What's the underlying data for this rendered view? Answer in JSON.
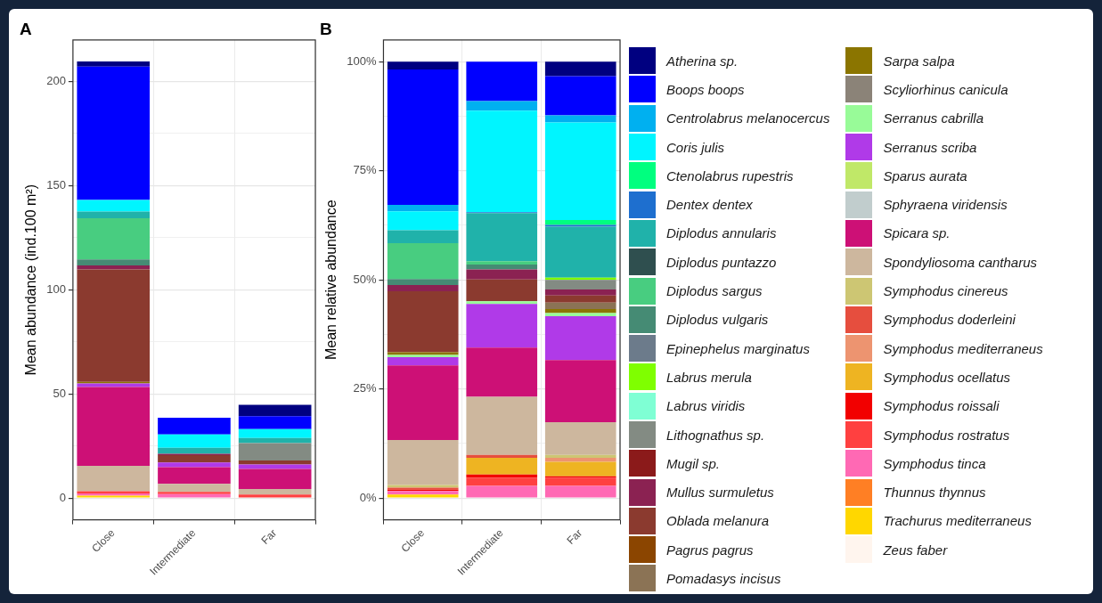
{
  "chart_data": [
    {
      "type": "bar",
      "title": "A",
      "ylabel": "Mean abundance (ind.100 m²)",
      "categories": [
        "Close",
        "Intermediate",
        "Far"
      ],
      "stacked": true,
      "grid": true,
      "legend": false,
      "ylim": [
        -10.5,
        220
      ],
      "yticks": [
        0,
        {
          "value": 25,
          "label": null
        },
        50,
        {
          "value": 75,
          "label": null
        },
        100,
        {
          "value": 125,
          "label": null
        },
        150,
        {
          "value": 175,
          "label": null
        },
        200
      ],
      "series": [
        {
          "color": "#fff5ee",
          "values": [
            null,
            null,
            null
          ]
        },
        {
          "color": "#ffd700",
          "values": [
            1.1,
            null,
            null
          ]
        },
        {
          "color": "#ff7f24",
          "values": [
            null,
            null,
            null
          ]
        },
        {
          "color": "#ff69b4",
          "values": [
            1.1,
            1.9,
            null
          ]
        },
        {
          "color": "#ff4040",
          "values": [
            1.1,
            1.0,
            1.7
          ]
        },
        {
          "color": "#f20000",
          "values": [
            null,
            null,
            null
          ]
        },
        {
          "color": "#eeb422",
          "values": [
            null,
            null,
            null
          ]
        },
        {
          "color": "#ed9470",
          "values": [
            null,
            null,
            null
          ]
        },
        {
          "color": "#e64e3e",
          "values": [
            null,
            null,
            null
          ]
        },
        {
          "color": "#cdc673",
          "values": [
            null,
            null,
            null
          ]
        },
        {
          "color": "#cdb79e",
          "values": [
            12.1,
            3.9,
            2.6
          ]
        },
        {
          "color": "#cd1076",
          "values": [
            37.9,
            8.0,
            9.7
          ]
        },
        {
          "color": "#c1cdcd",
          "values": [
            null,
            null,
            null
          ]
        },
        {
          "color": "#c0e868",
          "values": [
            null,
            null,
            null
          ]
        },
        {
          "color": "#b03ae8",
          "values": [
            1.7,
            2.2,
            2.1
          ]
        },
        {
          "color": "#98fb98",
          "values": [
            null,
            null,
            null
          ]
        },
        {
          "color": "#8b8378",
          "values": [
            null,
            null,
            null
          ]
        },
        {
          "color": "#8b7500",
          "values": [
            0.8,
            null,
            null
          ]
        },
        {
          "color": "#8b7355",
          "values": [
            null,
            null,
            null
          ]
        },
        {
          "color": "#8b4500",
          "values": [
            null,
            null,
            null
          ]
        },
        {
          "color": "#8b3a2f",
          "values": [
            54.0,
            3.6,
            1.9
          ]
        },
        {
          "color": "#8b2252",
          "values": [
            1.9,
            0.6,
            null
          ]
        },
        {
          "color": "#8b1a1a",
          "values": [
            null,
            null,
            null
          ]
        },
        {
          "color": "#838b83",
          "values": [
            null,
            null,
            8.4
          ]
        },
        {
          "color": "#7fffd4",
          "values": [
            null,
            null,
            null
          ]
        },
        {
          "color": "#7fff00",
          "values": [
            null,
            null,
            null
          ]
        },
        {
          "color": "#6c7b8b",
          "values": [
            null,
            null,
            null
          ]
        },
        {
          "color": "#458b74",
          "values": [
            2.9,
            null,
            null
          ]
        },
        {
          "color": "#48cd80",
          "values": [
            19.8,
            null,
            null
          ]
        },
        {
          "color": "#2f4f4f",
          "values": [
            null,
            null,
            null
          ]
        },
        {
          "color": "#20b2aa",
          "values": [
            3.2,
            2.9,
            2.4
          ]
        },
        {
          "color": "#1e6fcf",
          "values": [
            null,
            null,
            null
          ]
        },
        {
          "color": "#00ff7f",
          "values": [
            null,
            null,
            null
          ]
        },
        {
          "color": "#00f5ff",
          "values": [
            5.5,
            6.4,
            4.3
          ]
        },
        {
          "color": "#00b0f0",
          "values": [
            null,
            null,
            null
          ]
        },
        {
          "color": "#0000ff",
          "values": [
            64.1,
            8.0,
            6.2
          ]
        },
        {
          "color": "#000080",
          "values": [
            2.5,
            null,
            5.4
          ]
        }
      ]
    },
    {
      "type": "bar",
      "title": "B",
      "ylabel": "Mean relative abundance",
      "categories": [
        "Close",
        "Intermediate",
        "Far"
      ],
      "stacked": true,
      "grid": true,
      "legend": "right",
      "ylim": [
        -5,
        105
      ],
      "yticks": [
        {
          "value": 0,
          "label": "0%"
        },
        {
          "value": 12.5,
          "label": null
        },
        {
          "value": 25,
          "label": "25%"
        },
        {
          "value": 37.5,
          "label": null
        },
        {
          "value": 50,
          "label": "50%"
        },
        {
          "value": 62.5,
          "label": null
        },
        {
          "value": 75,
          "label": "75%"
        },
        {
          "value": 87.5,
          "label": null
        },
        {
          "value": 100,
          "label": "100%"
        }
      ],
      "series": [
        {
          "name": "Zeus faber",
          "color": "#fff5ee",
          "values": [
            null,
            null,
            null
          ]
        },
        {
          "name": "Trachurus mediterraneus",
          "color": "#ffd700",
          "values": [
            0.8,
            null,
            null
          ]
        },
        {
          "name": "Thunnus thynnus",
          "color": "#ff7f24",
          "values": [
            null,
            null,
            null
          ]
        },
        {
          "name": "Symphodus tinca",
          "color": "#ff69b4",
          "values": [
            0.8,
            2.8,
            2.8
          ]
        },
        {
          "name": "Symphodus rostratus",
          "color": "#ff4040",
          "values": [
            null,
            1.9,
            1.9
          ]
        },
        {
          "name": "Symphodus roissali",
          "color": "#f20000",
          "values": [
            0.3,
            0.7,
            0.3
          ]
        },
        {
          "name": "Symphodus ocellatus",
          "color": "#eeb422",
          "values": [
            null,
            3.8,
            3.3
          ]
        },
        {
          "name": "Symphodus mediterraneus",
          "color": "#ed9470",
          "values": [
            null,
            null,
            0.9
          ]
        },
        {
          "name": "Symphodus doderleini",
          "color": "#e64e3e",
          "values": [
            0.5,
            0.7,
            null
          ]
        },
        {
          "name": "Symphodus cinereus",
          "color": "#cdc673",
          "values": [
            0.6,
            null,
            0.7
          ]
        },
        {
          "name": "Spondyliosoma cantharus",
          "color": "#cdb79e",
          "values": [
            10.3,
            13.3,
            7.5
          ]
        },
        {
          "name": "Spicara sp.",
          "color": "#cd1076",
          "values": [
            17.1,
            11.3,
            14.2
          ]
        },
        {
          "name": "Sphyraena viridensis",
          "color": "#c1cdcd",
          "values": [
            null,
            null,
            null
          ]
        },
        {
          "name": "Sparus aurata",
          "color": "#c0e868",
          "values": [
            null,
            null,
            null
          ]
        },
        {
          "name": "Serranus scriba",
          "color": "#b03ae8",
          "values": [
            1.9,
            10.0,
            10.1
          ]
        },
        {
          "name": "Serranus cabrilla",
          "color": "#98fb98",
          "values": [
            0.5,
            0.6,
            0.7
          ]
        },
        {
          "name": "Scyliorhinus canicula",
          "color": "#8b8378",
          "values": [
            null,
            null,
            null
          ]
        },
        {
          "name": "Sarpa salpa",
          "color": "#8b7500",
          "values": [
            0.6,
            null,
            0.9
          ]
        },
        {
          "name": "Pomadasys incisus",
          "color": "#8b7355",
          "values": [
            null,
            null,
            1.5
          ]
        },
        {
          "name": "Pagrus pagrus",
          "color": "#8b4500",
          "values": [
            null,
            null,
            null
          ]
        },
        {
          "name": "Oblada melanura",
          "color": "#8b3a2f",
          "values": [
            14.0,
            5.0,
            1.6
          ]
        },
        {
          "name": "Mullus surmuletus",
          "color": "#8b2252",
          "values": [
            1.4,
            2.3,
            1.4
          ]
        },
        {
          "name": "Mugil sp.",
          "color": "#8b1a1a",
          "values": [
            null,
            null,
            null
          ]
        },
        {
          "name": "Lithognathus sp.",
          "color": "#838b83",
          "values": [
            null,
            null,
            2.2
          ]
        },
        {
          "name": "Labrus viridis",
          "color": "#7fffd4",
          "values": [
            null,
            null,
            null
          ]
        },
        {
          "name": "Labrus merula",
          "color": "#7fff00",
          "values": [
            null,
            null,
            0.5
          ]
        },
        {
          "name": "Epinephelus marginatus",
          "color": "#6c7b8b",
          "values": [
            null,
            null,
            null
          ]
        },
        {
          "name": "Diplodus vulgaris",
          "color": "#458b74",
          "values": [
            1.4,
            1.1,
            null
          ]
        },
        {
          "name": "Diplodus sargus",
          "color": "#48cd80",
          "values": [
            8.2,
            0.8,
            null
          ]
        },
        {
          "name": "Diplodus puntazzo",
          "color": "#2f4f4f",
          "values": [
            null,
            null,
            null
          ]
        },
        {
          "name": "Diplodus annularis",
          "color": "#20b2aa",
          "values": [
            3.0,
            11.0,
            11.7
          ]
        },
        {
          "name": "Dentex dentex",
          "color": "#1e6fcf",
          "values": [
            null,
            0.2,
            0.4
          ]
        },
        {
          "name": "Ctenolabrus rupestris",
          "color": "#00ff7f",
          "values": [
            null,
            null,
            1.1
          ]
        },
        {
          "name": "Coris julis",
          "color": "#00f5ff",
          "values": [
            4.3,
            23.3,
            22.4
          ]
        },
        {
          "name": "Centrolabrus melanocercus",
          "color": "#00b0f0",
          "values": [
            1.5,
            2.2,
            1.6
          ]
        },
        {
          "name": "Boops boops",
          "color": "#0000ff",
          "values": [
            31.0,
            9.0,
            9.0
          ]
        },
        {
          "name": "Atherina sp.",
          "color": "#000080",
          "values": [
            1.8,
            null,
            3.3
          ]
        }
      ]
    }
  ]
}
